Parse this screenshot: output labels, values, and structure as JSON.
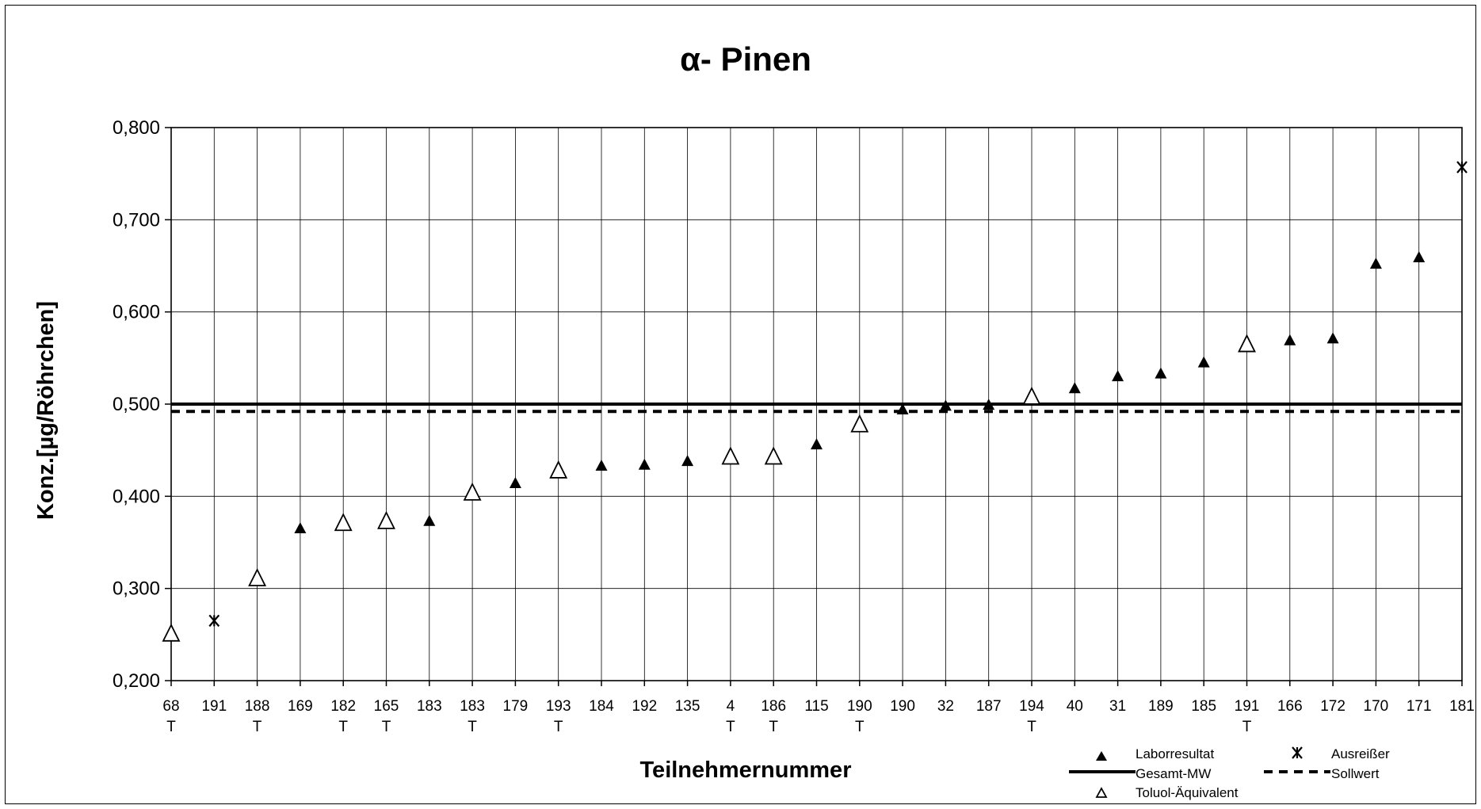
{
  "chart_data": {
    "type": "scatter",
    "title": "α- Pinen",
    "xlabel": "Teilnehmernummer",
    "ylabel": "Konz.[µg/Röhrchen]",
    "ylim": [
      0.2,
      0.8
    ],
    "yticks": [
      "0,200",
      "0,300",
      "0,400",
      "0,500",
      "0,600",
      "0,700",
      "0,800"
    ],
    "categories": [
      "68",
      "191",
      "188",
      "169",
      "182",
      "165",
      "183",
      "183",
      "179",
      "193",
      "184",
      "192",
      "135",
      "4",
      "186",
      "115",
      "190",
      "190",
      "32",
      "187",
      "194",
      "40",
      "31",
      "189",
      "185",
      "191",
      "166",
      "172",
      "170",
      "171",
      "181"
    ],
    "sub_labels": [
      "T",
      "",
      "T",
      "",
      "T",
      "T",
      "",
      "T",
      "",
      "T",
      "",
      "",
      "",
      "T",
      "T",
      "",
      "T",
      "",
      "",
      "",
      "T",
      "",
      "",
      "",
      "",
      "T",
      "",
      "",
      "",
      "",
      ""
    ],
    "points": [
      {
        "y": 0.25,
        "kind": "toluol"
      },
      {
        "y": 0.265,
        "kind": "ausreisser"
      },
      {
        "y": 0.31,
        "kind": "toluol"
      },
      {
        "y": 0.365,
        "kind": "labor"
      },
      {
        "y": 0.37,
        "kind": "toluol"
      },
      {
        "y": 0.372,
        "kind": "toluol"
      },
      {
        "y": 0.373,
        "kind": "labor"
      },
      {
        "y": 0.403,
        "kind": "toluol"
      },
      {
        "y": 0.414,
        "kind": "labor"
      },
      {
        "y": 0.427,
        "kind": "toluol"
      },
      {
        "y": 0.433,
        "kind": "labor"
      },
      {
        "y": 0.434,
        "kind": "labor"
      },
      {
        "y": 0.438,
        "kind": "labor"
      },
      {
        "y": 0.442,
        "kind": "toluol"
      },
      {
        "y": 0.442,
        "kind": "toluol"
      },
      {
        "y": 0.456,
        "kind": "labor"
      },
      {
        "y": 0.477,
        "kind": "toluol"
      },
      {
        "y": 0.494,
        "kind": "labor"
      },
      {
        "y": 0.498,
        "kind": "labor"
      },
      {
        "y": 0.499,
        "kind": "labor"
      },
      {
        "y": 0.507,
        "kind": "toluol"
      },
      {
        "y": 0.517,
        "kind": "labor"
      },
      {
        "y": 0.53,
        "kind": "labor"
      },
      {
        "y": 0.533,
        "kind": "labor"
      },
      {
        "y": 0.545,
        "kind": "labor"
      },
      {
        "y": 0.564,
        "kind": "toluol"
      },
      {
        "y": 0.569,
        "kind": "labor"
      },
      {
        "y": 0.571,
        "kind": "labor"
      },
      {
        "y": 0.652,
        "kind": "labor"
      },
      {
        "y": 0.659,
        "kind": "labor"
      },
      {
        "y": 0.757,
        "kind": "ausreisser"
      }
    ],
    "gesamt_mw": 0.5,
    "sollwert": 0.492,
    "grid": true,
    "legend_position": "bottom-right",
    "legend": {
      "labor": "Laborresultat",
      "ausreisser": "Ausreißer",
      "gesamt": "Gesamt-MW",
      "soll": "Sollwert",
      "toluol": "Toluol-Äquivalent"
    }
  }
}
